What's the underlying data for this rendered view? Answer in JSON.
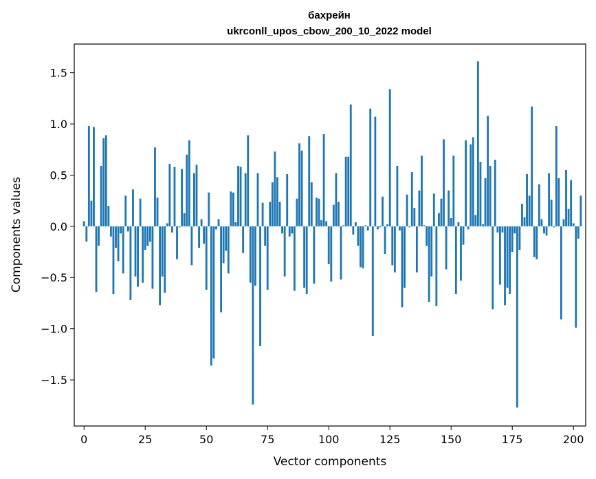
{
  "chart_data": {
    "type": "bar",
    "title": "бахрейн",
    "subtitle": "ukrconll_upos_cbow_200_10_2022 model",
    "xlabel": "Vector components",
    "ylabel": "Components values",
    "xlim": [
      -4,
      205
    ],
    "ylim": [
      -1.95,
      1.78
    ],
    "xticks": [
      0,
      25,
      50,
      75,
      100,
      125,
      150,
      175,
      200
    ],
    "yticks": [
      -1.5,
      -1.0,
      -0.5,
      0.0,
      0.5,
      1.0,
      1.5
    ],
    "ytick_labels": [
      "−1.5",
      "−1.0",
      "−0.5",
      "0.0",
      "0.5",
      "1.0",
      "1.5"
    ],
    "bar_color": "#1f77b4",
    "values": [
      0.05,
      -0.15,
      0.98,
      0.25,
      0.97,
      -0.64,
      -0.19,
      0.59,
      0.86,
      0.89,
      0.2,
      -0.1,
      -0.66,
      -0.21,
      -0.34,
      -0.07,
      -0.46,
      0.3,
      -0.05,
      -0.72,
      0.36,
      -0.49,
      -0.59,
      0.27,
      -0.55,
      -0.23,
      -0.19,
      -0.15,
      -0.61,
      0.77,
      0.28,
      -0.77,
      -0.49,
      -0.65,
      0.03,
      0.61,
      -0.06,
      0.58,
      -0.32,
      -0.01,
      0.56,
      0.13,
      0.7,
      0.84,
      -0.38,
      0.52,
      0.6,
      -0.21,
      0.07,
      -0.17,
      -0.62,
      0.33,
      -1.36,
      -1.29,
      -0.03,
      0.07,
      -0.84,
      -0.36,
      -0.24,
      -0.46,
      0.34,
      0.33,
      0.04,
      0.59,
      0.58,
      -0.26,
      0.52,
      0.89,
      -0.55,
      -1.74,
      -0.58,
      0.52,
      -1.17,
      0.23,
      -0.19,
      -0.62,
      0.24,
      0.43,
      0.73,
      0.48,
      0.24,
      -0.07,
      -0.49,
      0.51,
      -0.1,
      -0.07,
      -0.63,
      0.27,
      0.81,
      0.74,
      -0.6,
      -0.66,
      0.88,
      0.43,
      -0.56,
      0.28,
      0.27,
      0.06,
      0.9,
      0.05,
      -0.37,
      -0.54,
      0.21,
      0.52,
      0.24,
      -0.52,
      0.01,
      0.68,
      0.68,
      1.19,
      -0.08,
      0.04,
      -0.19,
      -0.4,
      -0.41,
      0.01,
      -0.04,
      1.15,
      -1.07,
      1.07,
      -0.03,
      -0.01,
      0.29,
      -0.27,
      0.02,
      1.34,
      -0.38,
      -0.45,
      0.59,
      -0.04,
      -0.79,
      -0.6,
      0.31,
      -0.01,
      0.53,
      0.18,
      -0.45,
      0.35,
      0.69,
      0.01,
      -0.19,
      -0.74,
      -0.49,
      0.32,
      -0.78,
      0.13,
      0.27,
      0.85,
      -0.42,
      0.35,
      0.08,
      0.69,
      -0.66,
      0.04,
      -0.53,
      -0.18,
      0.84,
      -0.03,
      0.8,
      0.87,
      0.11,
      1.61,
      0.63,
      0.02,
      0.47,
      1.08,
      0.59,
      -0.81,
      0.65,
      -0.06,
      -0.57,
      -0.06,
      -0.77,
      -0.6,
      -0.66,
      -0.25,
      -0.07,
      -1.77,
      -0.23,
      0.22,
      0.09,
      0.51,
      0.3,
      1.17,
      -0.3,
      -0.32,
      0.41,
      0.07,
      -0.07,
      -0.09,
      0.52,
      0.26,
      -0.01,
      0.98,
      0.47,
      -0.91,
      0.07,
      0.55,
      0.17,
      0.45,
      0.03,
      -0.99,
      -0.12,
      0.3
    ]
  }
}
